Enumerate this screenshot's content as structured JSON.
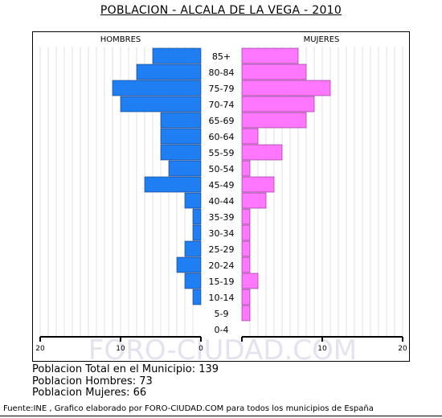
{
  "title": "POBLACION - ALCALA DE LA VEGA - 2010",
  "watermark": "FORO-CIUDAD.COM",
  "chart_data": {
    "type": "bar",
    "orientation": "horizontal-pyramid",
    "categories": [
      "85+",
      "80-84",
      "75-79",
      "70-74",
      "65-69",
      "60-64",
      "55-59",
      "50-54",
      "45-49",
      "40-44",
      "35-39",
      "30-34",
      "25-29",
      "20-24",
      "15-19",
      "10-14",
      "5-9",
      "0-4"
    ],
    "series": [
      {
        "name": "HOMBRES",
        "color": "#1e7ef2",
        "values": [
          6,
          8,
          11,
          10,
          5,
          5,
          5,
          4,
          7,
          2,
          1,
          1,
          2,
          3,
          2,
          1,
          0,
          0
        ]
      },
      {
        "name": "MUJERES",
        "color": "#ff77ff",
        "values": [
          7,
          8,
          11,
          9,
          8,
          2,
          5,
          1,
          4,
          3,
          1,
          1,
          1,
          1,
          2,
          1,
          1,
          0
        ]
      }
    ],
    "xlim": [
      0,
      20
    ],
    "xticks": [
      20,
      10,
      0,
      10,
      20
    ],
    "grid": true
  },
  "summary": {
    "total": "Poblacion Total en el Municipio: 139",
    "hombres": "Poblacion Hombres: 73",
    "mujeres": "Poblacion Mujeres: 66"
  },
  "source": "Fuente:INE , Grafico elaborado por FORO-CIUDAD.COM para todos los municipios de España"
}
